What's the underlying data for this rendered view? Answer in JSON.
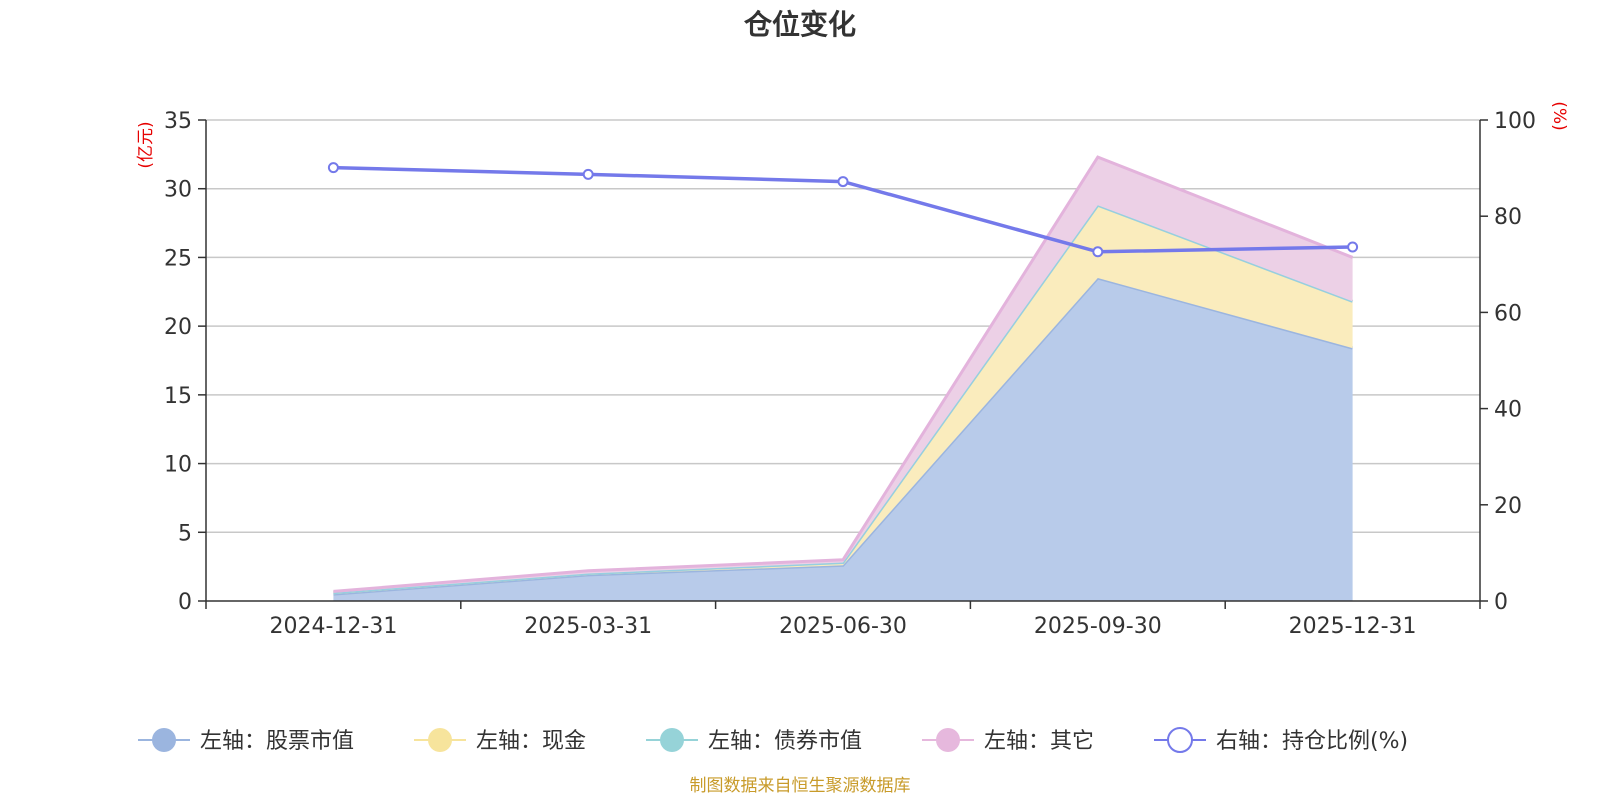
{
  "chart_data": {
    "type": "area",
    "title": "仓位变化",
    "categories": [
      "2024-12-31",
      "2025-03-31",
      "2025-06-30",
      "2025-09-30",
      "2025-12-31"
    ],
    "left_axis": {
      "unit": "(亿元)",
      "min": 0,
      "max": 35,
      "ticks": [
        0,
        5,
        10,
        15,
        20,
        25,
        30,
        35
      ]
    },
    "right_axis": {
      "unit": "(%)",
      "min": 0,
      "max": 100,
      "ticks": [
        0,
        20,
        40,
        60,
        80,
        100
      ]
    },
    "stacked_series": [
      {
        "name": "左轴：股票市值",
        "values": [
          0.5,
          1.9,
          2.6,
          23.5,
          18.4
        ],
        "fill": "#b8cbea",
        "stroke": "#9bb5df",
        "marker": "#9bb5df"
      },
      {
        "name": "左轴：现金",
        "values": [
          0.1,
          0.1,
          0.2,
          5.3,
          3.4
        ],
        "fill": "#faecbd",
        "stroke": "#f7e49c",
        "marker": "#f7e49c"
      },
      {
        "name": "左轴：债券市值",
        "values": [
          0,
          0,
          0,
          0,
          0
        ],
        "fill": "#9bd4d9",
        "stroke": "#96cfe0",
        "marker": "#96d3d8"
      },
      {
        "name": "左轴：其它",
        "values": [
          0.1,
          0.2,
          0.2,
          3.5,
          3.2
        ],
        "fill": "#ecd0e6",
        "stroke": "#e3b3dc",
        "marker": "#e6b8dd"
      }
    ],
    "line_series": {
      "name": "右轴：持仓比例(%)",
      "values": [
        90.1,
        88.7,
        87.2,
        72.6,
        73.6
      ],
      "color": "#7479ea"
    },
    "grid": true,
    "legend_position": "bottom",
    "source": "制图数据来自恒生聚源数据库"
  }
}
